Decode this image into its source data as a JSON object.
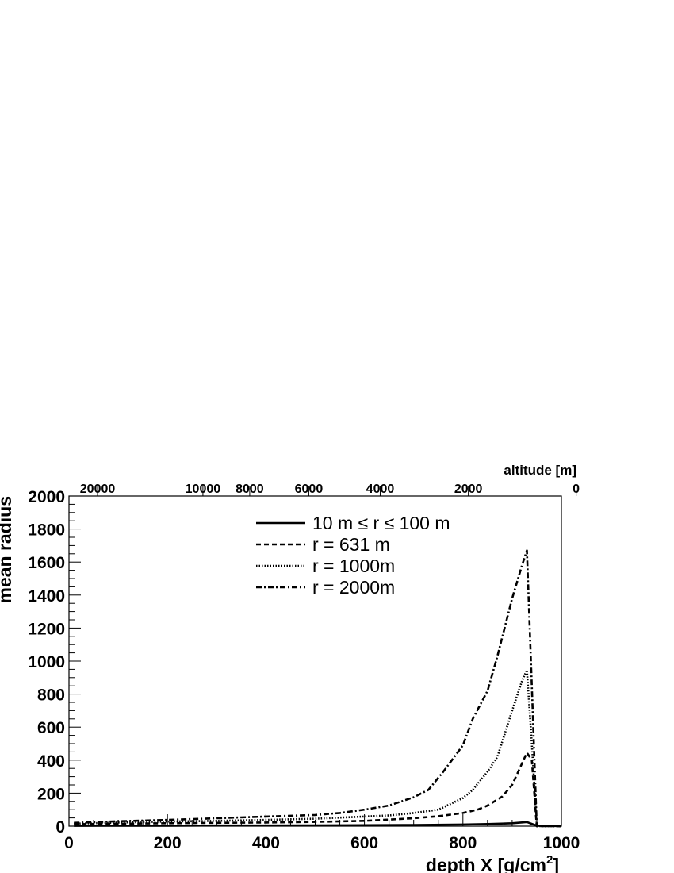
{
  "chart_data": {
    "type": "line",
    "xlabel": "depth X [g/cm",
    "xlabel_sup": "2",
    "xlabel_end": "]",
    "ylabel": "mean radius",
    "top_axis_label": "altitude [m]",
    "xlim": [
      0,
      1000
    ],
    "ylim": [
      0,
      2000
    ],
    "x_ticks": [
      "0",
      "200",
      "400",
      "600",
      "800",
      "1000"
    ],
    "y_ticks": [
      "0",
      "200",
      "400",
      "600",
      "800",
      "1000",
      "1200",
      "1400",
      "1600",
      "1800",
      "2000"
    ],
    "top_ticks": [
      {
        "label": "20000",
        "x": 58
      },
      {
        "label": "10000",
        "x": 272
      },
      {
        "label": "8000",
        "x": 367
      },
      {
        "label": "6000",
        "x": 487
      },
      {
        "label": "4000",
        "x": 632
      },
      {
        "label": "2000",
        "x": 811
      },
      {
        "label": "0",
        "x": 1030
      }
    ],
    "legend_position": "top-center",
    "series": [
      {
        "name": "10 m ≤ r ≤ 100 m",
        "style": "solid",
        "x": [
          10,
          100,
          200,
          300,
          400,
          500,
          600,
          700,
          800,
          850,
          900,
          930,
          950,
          1000
        ],
        "y": [
          2,
          3,
          3,
          4,
          4,
          5,
          6,
          7,
          10,
          13,
          18,
          25,
          3,
          0
        ]
      },
      {
        "name": "r = 631 m",
        "style": "dashed",
        "x": [
          10,
          100,
          200,
          300,
          400,
          500,
          600,
          650,
          700,
          750,
          800,
          830,
          850,
          880,
          900,
          920,
          930,
          940,
          950,
          1000
        ],
        "y": [
          12,
          15,
          18,
          20,
          22,
          26,
          32,
          40,
          48,
          60,
          80,
          100,
          125,
          180,
          250,
          380,
          445,
          400,
          0,
          0
        ]
      },
      {
        "name": "r = 1000m",
        "style": "dotted",
        "x": [
          10,
          100,
          200,
          300,
          400,
          500,
          600,
          650,
          700,
          750,
          800,
          820,
          850,
          870,
          900,
          920,
          930,
          940,
          950,
          1000
        ],
        "y": [
          15,
          22,
          28,
          32,
          38,
          45,
          58,
          65,
          80,
          100,
          170,
          220,
          330,
          420,
          700,
          880,
          945,
          500,
          0,
          0
        ]
      },
      {
        "name": "r = 2000m",
        "style": "dashdot",
        "x": [
          10,
          100,
          200,
          300,
          400,
          500,
          550,
          600,
          650,
          700,
          730,
          760,
          800,
          820,
          850,
          870,
          900,
          920,
          930,
          940,
          950,
          1000
        ],
        "y": [
          20,
          30,
          38,
          48,
          58,
          68,
          80,
          100,
          125,
          175,
          220,
          330,
          490,
          650,
          820,
          1030,
          1380,
          1580,
          1670,
          850,
          0,
          0
        ]
      }
    ]
  }
}
